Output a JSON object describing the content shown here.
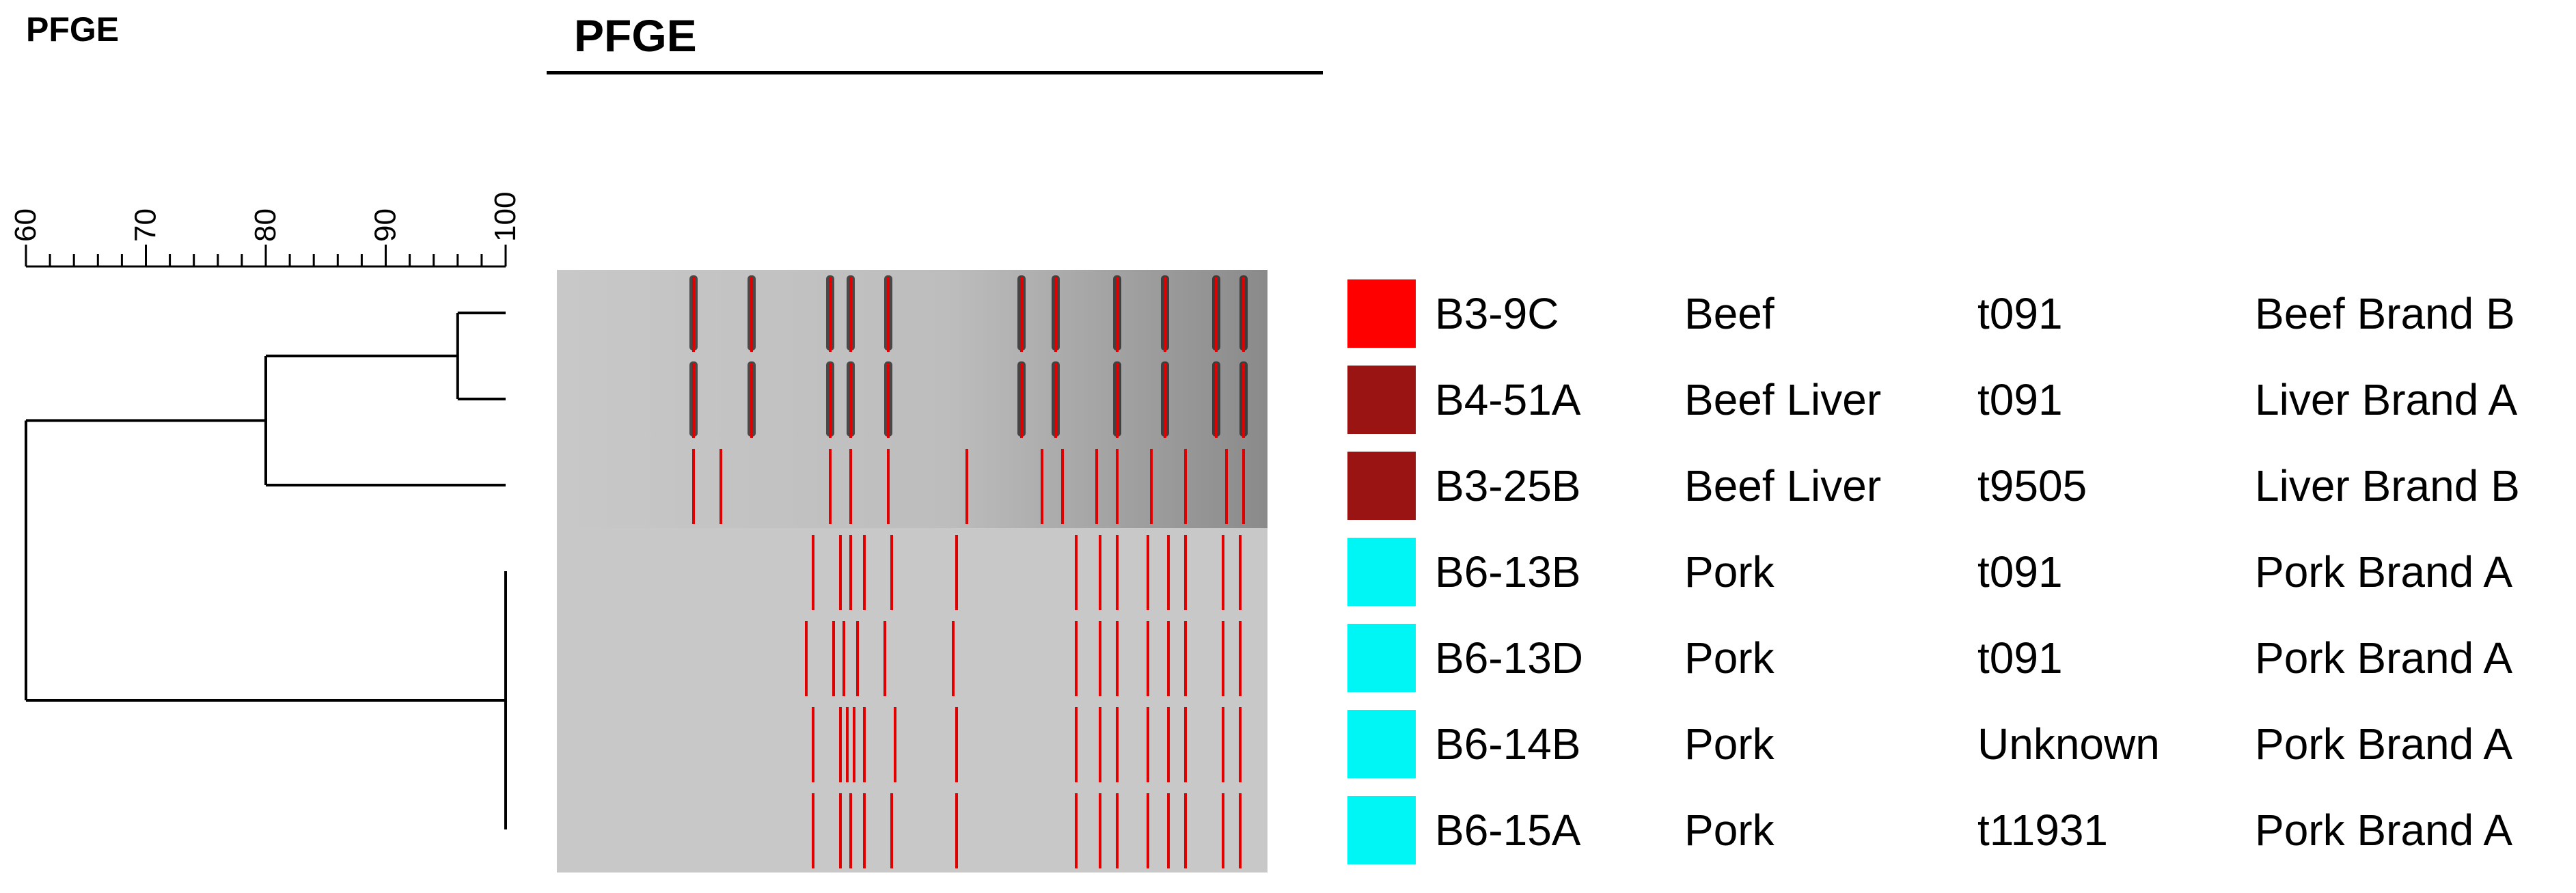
{
  "header": {
    "small_title": "PFGE",
    "title": "PFGE"
  },
  "scale": {
    "min": 60,
    "max": 100,
    "major_step": 10,
    "minor_step": 2,
    "labels": [
      "60",
      "70",
      "80",
      "90",
      "100"
    ]
  },
  "dendrogram": {
    "nodes": [
      {
        "id": "n1",
        "similarity": 96,
        "children": [
          "B3-9C",
          "B4-51A"
        ]
      },
      {
        "id": "n2",
        "similarity": 80,
        "children": [
          "n1",
          "B3-25B"
        ]
      },
      {
        "id": "n3",
        "similarity": 100,
        "children": [
          "B6-13B",
          "B6-13D",
          "B6-14B",
          "B6-15A"
        ]
      },
      {
        "id": "root",
        "similarity": 60,
        "children": [
          "n2",
          "n3"
        ]
      }
    ]
  },
  "colors": {
    "beef": "#ff0000",
    "beef_liver": "#9b1414",
    "pork": "#00f5f5",
    "band_marker": "#e00000",
    "gel_bg": "#c8c8c8"
  },
  "isolates": [
    {
      "id": "B3-9C",
      "source": "Beef",
      "spa_type": "t091",
      "brand": "Beef Brand B",
      "color": "#ff0000",
      "bands": [
        0.18,
        0.265,
        0.38,
        0.41,
        0.465,
        0.66,
        0.71,
        0.8,
        0.87,
        0.945,
        0.985
      ]
    },
    {
      "id": "B4-51A",
      "source": "Beef Liver",
      "spa_type": "t091",
      "brand": "Liver Brand A",
      "color": "#9b1414",
      "bands": [
        0.18,
        0.265,
        0.38,
        0.41,
        0.465,
        0.66,
        0.71,
        0.8,
        0.87,
        0.945,
        0.985
      ]
    },
    {
      "id": "B3-25B",
      "source": "Beef Liver",
      "spa_type": "t9505",
      "brand": "Liver Brand B",
      "color": "#9b1414",
      "bands": [
        0.18,
        0.22,
        0.38,
        0.41,
        0.465,
        0.58,
        0.69,
        0.72,
        0.77,
        0.8,
        0.85,
        0.9,
        0.96,
        0.985
      ]
    },
    {
      "id": "B6-13B",
      "source": "Pork",
      "spa_type": "t091",
      "brand": "Pork Brand A",
      "color": "#00f5f5",
      "bands": [
        0.355,
        0.395,
        0.41,
        0.43,
        0.47,
        0.565,
        0.74,
        0.775,
        0.8,
        0.845,
        0.875,
        0.9,
        0.955,
        0.98
      ]
    },
    {
      "id": "B6-13D",
      "source": "Pork",
      "spa_type": "t091",
      "brand": "Pork Brand A",
      "color": "#00f5f5",
      "bands": [
        0.345,
        0.385,
        0.4,
        0.42,
        0.46,
        0.56,
        0.74,
        0.775,
        0.8,
        0.845,
        0.875,
        0.9,
        0.955,
        0.98
      ]
    },
    {
      "id": "B6-14B",
      "source": "Pork",
      "spa_type": "Unknown",
      "brand": "Pork Brand A",
      "color": "#00f5f5",
      "bands": [
        0.355,
        0.395,
        0.405,
        0.415,
        0.43,
        0.475,
        0.565,
        0.74,
        0.775,
        0.8,
        0.845,
        0.875,
        0.9,
        0.955,
        0.98
      ]
    },
    {
      "id": "B6-15A",
      "source": "Pork",
      "spa_type": "t11931",
      "brand": "Pork Brand A",
      "color": "#00f5f5",
      "bands": [
        0.355,
        0.395,
        0.41,
        0.43,
        0.47,
        0.565,
        0.74,
        0.775,
        0.8,
        0.845,
        0.875,
        0.9,
        0.955,
        0.98
      ]
    }
  ]
}
